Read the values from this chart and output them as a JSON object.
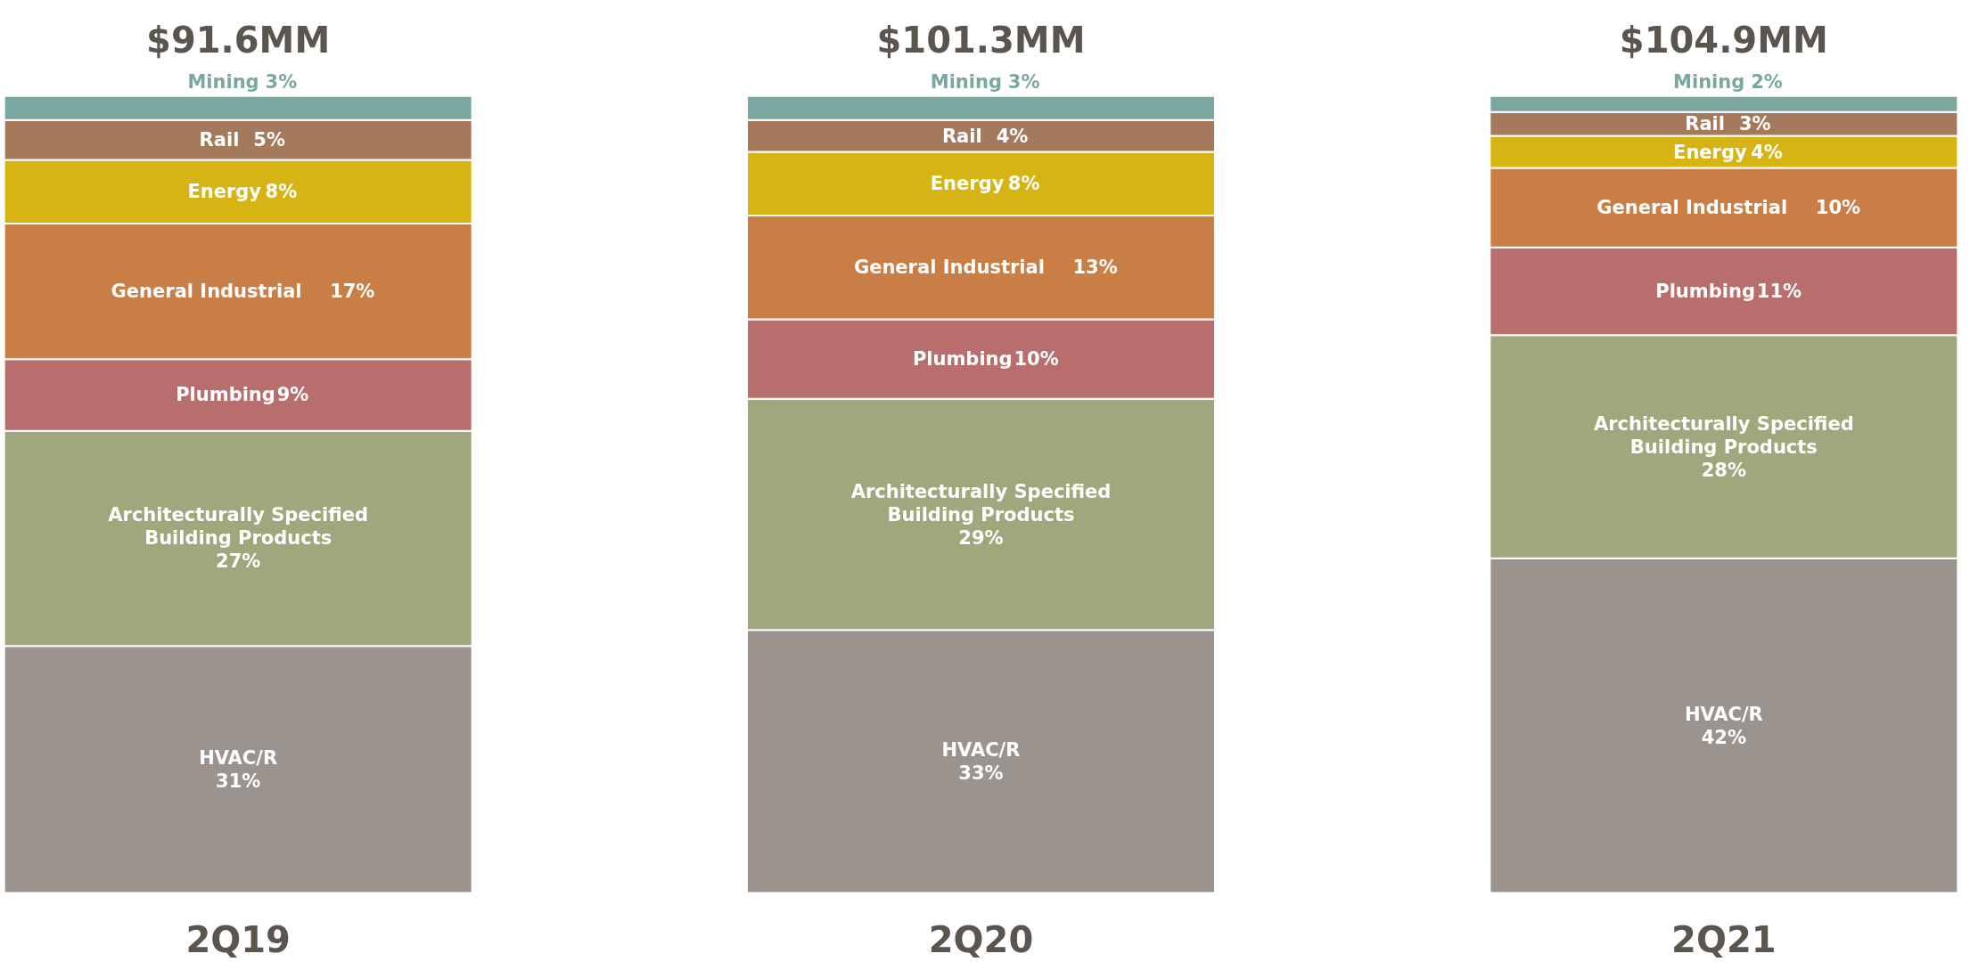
{
  "chart_data": {
    "type": "bar",
    "stacked": true,
    "categories": [
      "2Q19",
      "2Q20",
      "2Q21"
    ],
    "series": [
      {
        "name": "HVAC/R",
        "color": "#9a938e",
        "values": [
          31,
          33,
          42
        ],
        "value_labels": [
          "31%",
          "33%",
          "42%"
        ]
      },
      {
        "name": "Architecturally Specified Building Products",
        "color": "#a0a77c",
        "values": [
          27,
          29,
          28
        ],
        "value_labels": [
          "27%",
          "29%",
          "28%"
        ]
      },
      {
        "name": "Plumbing",
        "color": "#b86e6c",
        "values": [
          9,
          10,
          11
        ],
        "value_labels": [
          "9%",
          "10%",
          "11%"
        ]
      },
      {
        "name": "General Industrial",
        "color": "#c97e45",
        "values": [
          17,
          13,
          10
        ],
        "value_labels": [
          "17%",
          "13%",
          "10%"
        ]
      },
      {
        "name": "Energy",
        "color": "#d6b414",
        "values": [
          8,
          8,
          4
        ],
        "value_labels": [
          "8%",
          "8%",
          "4%"
        ]
      },
      {
        "name": "Rail",
        "color": "#a57a5c",
        "values": [
          5,
          4,
          3
        ],
        "value_labels": [
          "5%",
          "4%",
          "3%"
        ]
      },
      {
        "name": "Mining",
        "color": "#7aa8a0",
        "values": [
          3,
          3,
          2
        ],
        "value_labels": [
          "3%",
          "3%",
          "2%"
        ]
      }
    ],
    "annotations": [
      "$91.6MM",
      "$101.3MM",
      "$104.9MM"
    ],
    "grid": false,
    "legend": false
  }
}
